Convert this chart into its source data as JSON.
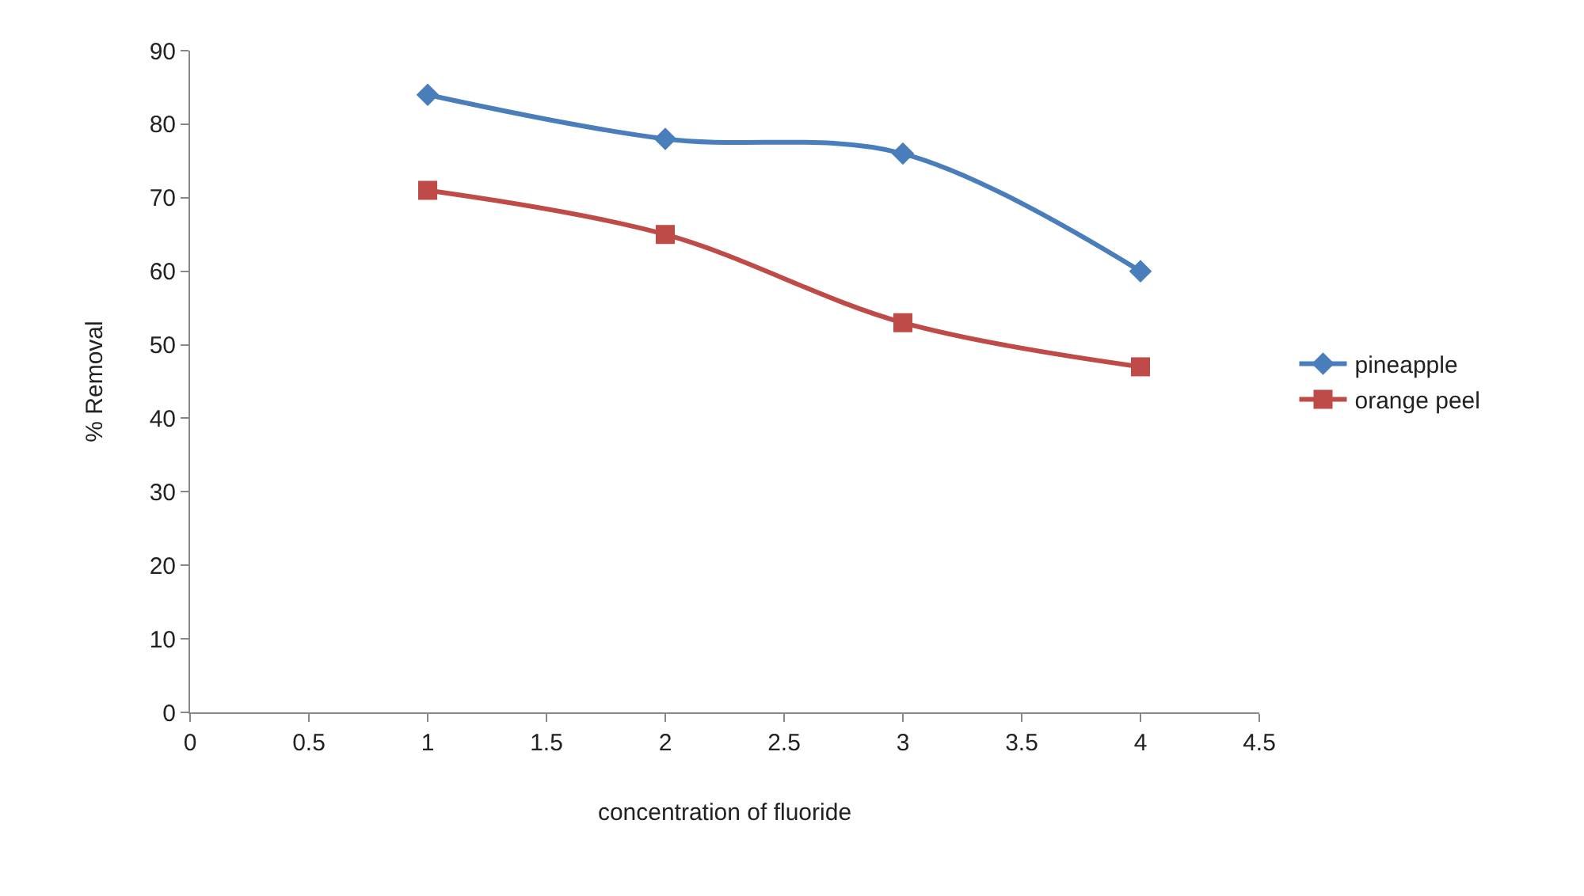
{
  "chart_data": {
    "type": "line",
    "xlabel": "concentration of fluoride",
    "ylabel": "% Removal",
    "x": [
      1,
      2,
      3,
      4
    ],
    "series": [
      {
        "name": "pineapple",
        "color": "#4a7ebb",
        "values": [
          84,
          78,
          76,
          60
        ],
        "marker": "diamond"
      },
      {
        "name": "orange peel",
        "color": "#be4b48",
        "values": [
          71,
          65,
          53,
          47
        ],
        "marker": "square"
      }
    ],
    "xlim": [
      0,
      4.5
    ],
    "xticks": [
      0,
      0.5,
      1,
      1.5,
      2,
      2.5,
      3,
      3.5,
      4,
      4.5
    ],
    "ylim": [
      0,
      90
    ],
    "yticks": [
      0,
      10,
      20,
      30,
      40,
      50,
      60,
      70,
      80,
      90
    ],
    "legend": "right"
  }
}
